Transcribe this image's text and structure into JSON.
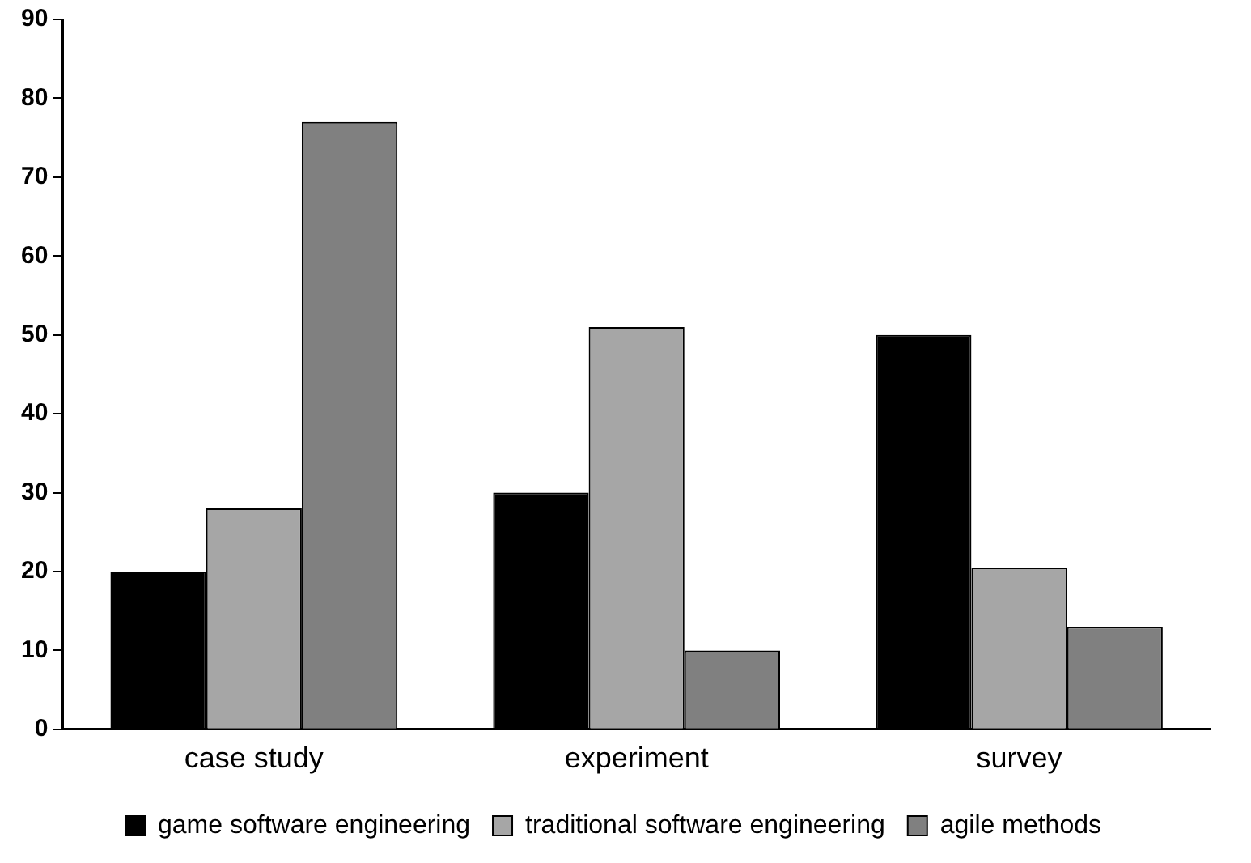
{
  "chart_data": {
    "type": "bar",
    "categories": [
      "case study",
      "experiment",
      "survey"
    ],
    "series": [
      {
        "name": "game software engineering",
        "color": "#000000",
        "values": [
          20,
          30,
          50
        ]
      },
      {
        "name": "traditional software engineering",
        "color": "#a6a6a6",
        "values": [
          28,
          51,
          20.5
        ]
      },
      {
        "name": "agile methods",
        "color": "#808080",
        "values": [
          77,
          10,
          13
        ]
      }
    ],
    "ylim": [
      0,
      90
    ],
    "yticks": [
      0,
      10,
      20,
      30,
      40,
      50,
      60,
      70,
      80,
      90
    ],
    "grid": false,
    "legend": "bottom"
  }
}
